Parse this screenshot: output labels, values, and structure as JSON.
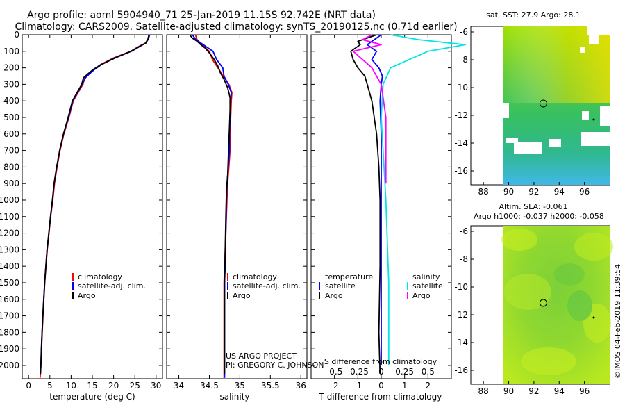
{
  "header": {
    "title_line1": "Argo profile: aoml 5904940_71 25-Jan-2019 11.15S 92.742E (NRT data)",
    "title_line2": "Climatology: CARS2009. Satellite-adjusted climatology: synTS_20190125.nc (0.71d earlier)"
  },
  "colors": {
    "climatology": "#ff0000",
    "satellite": "#0000ff",
    "argo": "#000000",
    "sal_satellite": "#00e5e5",
    "sal_argo": "#ff00ff"
  },
  "footer": {
    "project": "US ARGO PROJECT",
    "pi": "PI: GREGORY C. JOHNSON",
    "stamp": "©IMOS 04-Feb-2019 11:39:54"
  },
  "chart_data": [
    {
      "type": "line",
      "id": "temperature",
      "xlabel": "temperature (deg C)",
      "xlim": [
        -1.5,
        31.5
      ],
      "ylim": [
        2080,
        0
      ],
      "xticks": [
        0,
        5,
        10,
        15,
        20,
        25,
        30
      ],
      "yticks": [
        0,
        100,
        200,
        300,
        400,
        500,
        600,
        700,
        800,
        900,
        1000,
        1100,
        1200,
        1300,
        1400,
        1500,
        1600,
        1700,
        1800,
        1900,
        2000
      ],
      "legend": [
        "climatology",
        "satellite-adj. clim.",
        "Argo"
      ],
      "series": [
        {
          "name": "climatology",
          "color": "#ff0000",
          "x": [
            28.4,
            28.1,
            27.5,
            26,
            24,
            20,
            17,
            15.3,
            14,
            13.2,
            12.8,
            10.5,
            9.5,
            8.3,
            7.4,
            6.7,
            6.1,
            5.7,
            5.2,
            4.8,
            4.4,
            4.1,
            3.8,
            3.6,
            3.4,
            3.2,
            3.05,
            2.9,
            2.8,
            2.7
          ],
          "y": [
            0,
            25,
            50,
            70,
            100,
            140,
            180,
            210,
            240,
            260,
            300,
            400,
            500,
            600,
            700,
            800,
            900,
            1000,
            1100,
            1200,
            1300,
            1400,
            1500,
            1600,
            1700,
            1800,
            1900,
            2000,
            2050,
            2075
          ]
        },
        {
          "name": "satellite-adj. clim.",
          "color": "#0000ff",
          "x": [
            28.5,
            28.2,
            27.6,
            26.2,
            24.2,
            20.2,
            17.2,
            15.5,
            14.2,
            13.4,
            12.6,
            10.4,
            9.4,
            8.2,
            7.3,
            6.6,
            6.0,
            5.6,
            5.15,
            4.75,
            4.35,
            4.05,
            3.78,
            3.55,
            3.35,
            3.15,
            3.0,
            2.88,
            2.78
          ],
          "y": [
            0,
            25,
            50,
            70,
            100,
            140,
            180,
            210,
            240,
            260,
            300,
            400,
            500,
            600,
            700,
            800,
            900,
            1000,
            1100,
            1200,
            1300,
            1400,
            1500,
            1600,
            1700,
            1800,
            1900,
            2000,
            2050
          ]
        },
        {
          "name": "Argo",
          "color": "#000000",
          "x": [
            28.3,
            28.1,
            27.6,
            26.1,
            24.1,
            20.4,
            17.1,
            15.2,
            13.8,
            12.9,
            12.5,
            10.3,
            9.3,
            8.2,
            7.3,
            6.6,
            6.0,
            5.6,
            5.15,
            4.75,
            4.35,
            4.05,
            3.8,
            3.56,
            3.36,
            3.17,
            3.02,
            2.9,
            2.8
          ],
          "y": [
            0,
            25,
            50,
            70,
            100,
            140,
            180,
            210,
            240,
            260,
            300,
            400,
            500,
            600,
            700,
            800,
            900,
            1000,
            1100,
            1200,
            1300,
            1400,
            1500,
            1600,
            1700,
            1800,
            1900,
            2000,
            2050
          ]
        }
      ]
    },
    {
      "type": "line",
      "id": "salinity",
      "xlabel": "salinity",
      "xlim": [
        33.8,
        36.1
      ],
      "ylim": [
        2080,
        0
      ],
      "xticks": [
        34,
        34.5,
        35,
        35.5,
        36
      ],
      "xticklabels": [
        "34",
        "34.5",
        "35",
        "35.5",
        "36"
      ],
      "legend": [
        "climatology",
        "satellite-adj. clim.",
        "Argo"
      ],
      "series": [
        {
          "name": "climatology",
          "color": "#ff0000",
          "x": [
            34.27,
            34.3,
            34.38,
            34.5,
            34.55,
            34.64,
            34.73,
            34.82,
            34.87,
            34.86,
            34.85,
            34.84,
            34.84,
            34.82,
            34.8,
            34.79,
            34.77,
            34.75,
            34.74,
            34.74,
            34.74,
            34.74,
            34.74,
            34.74
          ],
          "y": [
            0,
            30,
            60,
            100,
            150,
            200,
            250,
            300,
            350,
            400,
            500,
            600,
            700,
            800,
            900,
            1000,
            1200,
            1400,
            1500,
            1600,
            1700,
            1800,
            1900,
            2075
          ]
        },
        {
          "name": "satellite-adj. clim.",
          "color": "#0000ff",
          "x": [
            34.22,
            34.28,
            34.4,
            34.56,
            34.62,
            34.72,
            34.74,
            34.81,
            34.86,
            34.85,
            34.84,
            34.83,
            34.83,
            34.81,
            34.79,
            34.78,
            34.77,
            34.76,
            34.75,
            34.75,
            34.75,
            34.75,
            34.75,
            34.75
          ],
          "y": [
            0,
            30,
            60,
            100,
            150,
            200,
            250,
            300,
            350,
            400,
            500,
            600,
            700,
            800,
            900,
            1000,
            1200,
            1400,
            1500,
            1600,
            1700,
            1800,
            1900,
            2075
          ]
        },
        {
          "name": "Argo",
          "color": "#000000",
          "x": [
            34.18,
            34.22,
            34.3,
            34.36,
            34.43,
            34.5,
            34.58,
            34.64,
            34.68,
            34.74,
            34.8,
            34.84,
            34.84,
            34.83,
            34.82,
            34.81,
            34.8,
            34.78,
            34.77,
            34.76,
            34.75,
            34.75,
            34.75,
            34.75,
            34.75,
            34.75
          ],
          "y": [
            0,
            20,
            40,
            60,
            80,
            110,
            150,
            190,
            230,
            270,
            320,
            380,
            450,
            550,
            650,
            750,
            850,
            950,
            1100,
            1300,
            1500,
            1600,
            1700,
            1800,
            1900,
            2050
          ]
        }
      ]
    },
    {
      "type": "line",
      "id": "differences",
      "xlabel": "T difference from climatology",
      "xlabel_top": "S difference from climatology",
      "xlim": [
        -3,
        3
      ],
      "ylim": [
        2080,
        0
      ],
      "xticks": [
        -2,
        -1,
        0,
        1,
        2
      ],
      "xticks2": [
        -0.5,
        -0.25,
        0,
        0.25,
        0.5
      ],
      "xticklabels2": [
        "-0.5",
        "-0.25",
        "0",
        "0.25",
        "0.5"
      ],
      "legend_left_title": "temperature",
      "legend_right_title": "salinity",
      "legend_left": [
        "satellite",
        "Argo"
      ],
      "legend_right": [
        "satellite",
        "Argo"
      ],
      "series": [
        {
          "name": "T satellite",
          "color": "#0000ff",
          "x": [
            0,
            -0.3,
            -0.6,
            -0.2,
            -0.4,
            -0.1,
            0.05,
            0,
            -0.05,
            0,
            0,
            0,
            0
          ],
          "y": [
            0,
            30,
            60,
            100,
            150,
            200,
            250,
            300,
            400,
            600,
            900,
            1500,
            2000
          ]
        },
        {
          "name": "T Argo",
          "color": "#000000",
          "x": [
            -0.2,
            -1.0,
            -0.9,
            -1.3,
            -1.2,
            -1.0,
            -0.7,
            -0.6,
            -0.4,
            -0.3,
            -0.2,
            -0.1,
            -0.05,
            -0.05,
            -0.1,
            -0.05
          ],
          "y": [
            0,
            40,
            60,
            100,
            150,
            200,
            250,
            300,
            400,
            500,
            600,
            800,
            1000,
            1400,
            1800,
            2050
          ]
        },
        {
          "name": "S satellite",
          "color": "#00e5e5",
          "x": [
            0.1,
            0.4,
            0.9,
            0.5,
            0.3,
            0.1,
            0.02,
            0,
            0.05,
            0.08,
            0.08
          ],
          "y": [
            0,
            30,
            60,
            100,
            150,
            200,
            300,
            500,
            1000,
            1500,
            2000
          ]
        },
        {
          "name": "S Argo",
          "color": "#ff00ff",
          "x": [
            -0.1,
            -0.2,
            0.0,
            -0.3,
            -0.2,
            -0.1,
            0,
            0.05,
            0.05
          ],
          "y": [
            0,
            30,
            60,
            100,
            150,
            200,
            300,
            500,
            900
          ]
        }
      ]
    },
    {
      "type": "heatmap",
      "id": "sst-map",
      "title": "sat. SST: 27.9 Argo: 28.1",
      "xticks": [
        88,
        90,
        92,
        94,
        96
      ],
      "yticks": [
        -6,
        -8,
        -10,
        -12,
        -14,
        -16
      ],
      "xlim": [
        87,
        98
      ],
      "ylim": [
        -17,
        -5.6
      ],
      "marker": {
        "lon": 92.742,
        "lat": -11.15
      }
    },
    {
      "type": "heatmap",
      "id": "sla-map",
      "title": "Altim. SLA: -0.061",
      "subtitle": "Argo h1000: -0.037 h2000: -0.058",
      "xticks": [
        88,
        90,
        92,
        94,
        96
      ],
      "yticks": [
        -6,
        -8,
        -10,
        -12,
        -14,
        -16
      ],
      "xlim": [
        87,
        98
      ],
      "ylim": [
        -17,
        -5.6
      ],
      "marker": {
        "lon": 92.742,
        "lat": -11.15
      }
    }
  ]
}
